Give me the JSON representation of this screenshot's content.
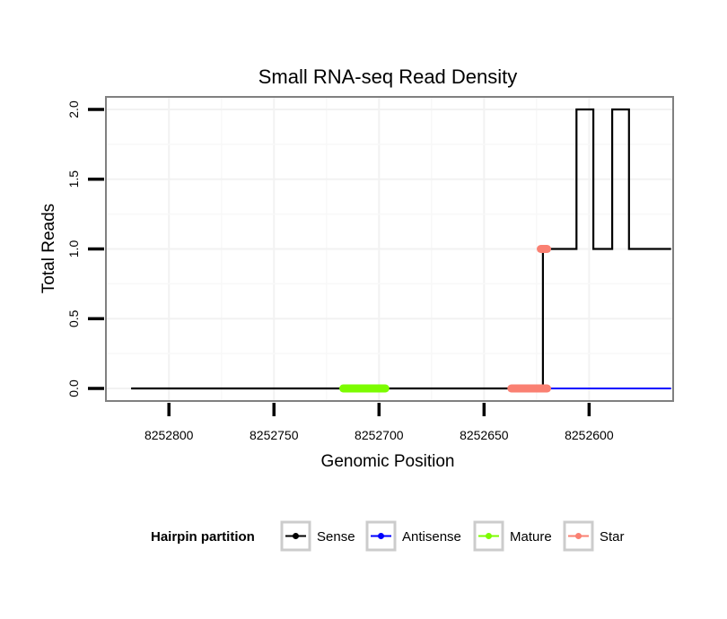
{
  "chart_data": {
    "type": "line",
    "title": "Small RNA-seq Read Density",
    "xlabel": "Genomic Position",
    "ylabel": "Total Reads",
    "xlim": [
      8252830,
      8252560
    ],
    "x_reversed": true,
    "ylim": [
      -0.09,
      2.09
    ],
    "x_ticks": [
      8252800,
      8252750,
      8252700,
      8252650,
      8252600
    ],
    "x_tick_labels": [
      "8252800",
      "8252750",
      "8252700",
      "8252650",
      "8252600"
    ],
    "y_ticks": [
      0.0,
      0.5,
      1.0,
      1.5,
      2.0
    ],
    "y_tick_labels": [
      "0.0",
      "0.5",
      "1.0",
      "1.5",
      "2.0"
    ],
    "grid": true,
    "legend_position": "bottom",
    "series": [
      {
        "name": "Sense",
        "color": "#000000",
        "x": [
          8252818,
          8252622,
          8252622,
          8252620,
          8252620,
          8252606,
          8252606,
          8252598,
          8252598,
          8252589,
          8252589,
          8252581,
          8252581,
          8252573,
          8252573,
          8252561
        ],
        "y": [
          0,
          0,
          1,
          1,
          1,
          1,
          2,
          2,
          1,
          1,
          2,
          2,
          1,
          1,
          1,
          1
        ]
      },
      {
        "name": "Antisense",
        "color": "#0000ff",
        "x": [
          8252622,
          8252561
        ],
        "y": [
          0,
          0
        ]
      },
      {
        "name": "Mature",
        "color": "#7cfc00",
        "x": [
          8252697,
          8252717
        ],
        "y": [
          0,
          0
        ]
      },
      {
        "name": "Star",
        "color": "#fa8072",
        "x": [
          8252637,
          8252620
        ],
        "y": [
          0,
          0
        ],
        "x2": [
          8252623,
          8252620
        ],
        "y2": [
          1,
          1
        ]
      }
    ],
    "legend": {
      "title": "Hairpin partition",
      "entries": [
        "Sense",
        "Antisense",
        "Mature",
        "Star"
      ]
    }
  }
}
